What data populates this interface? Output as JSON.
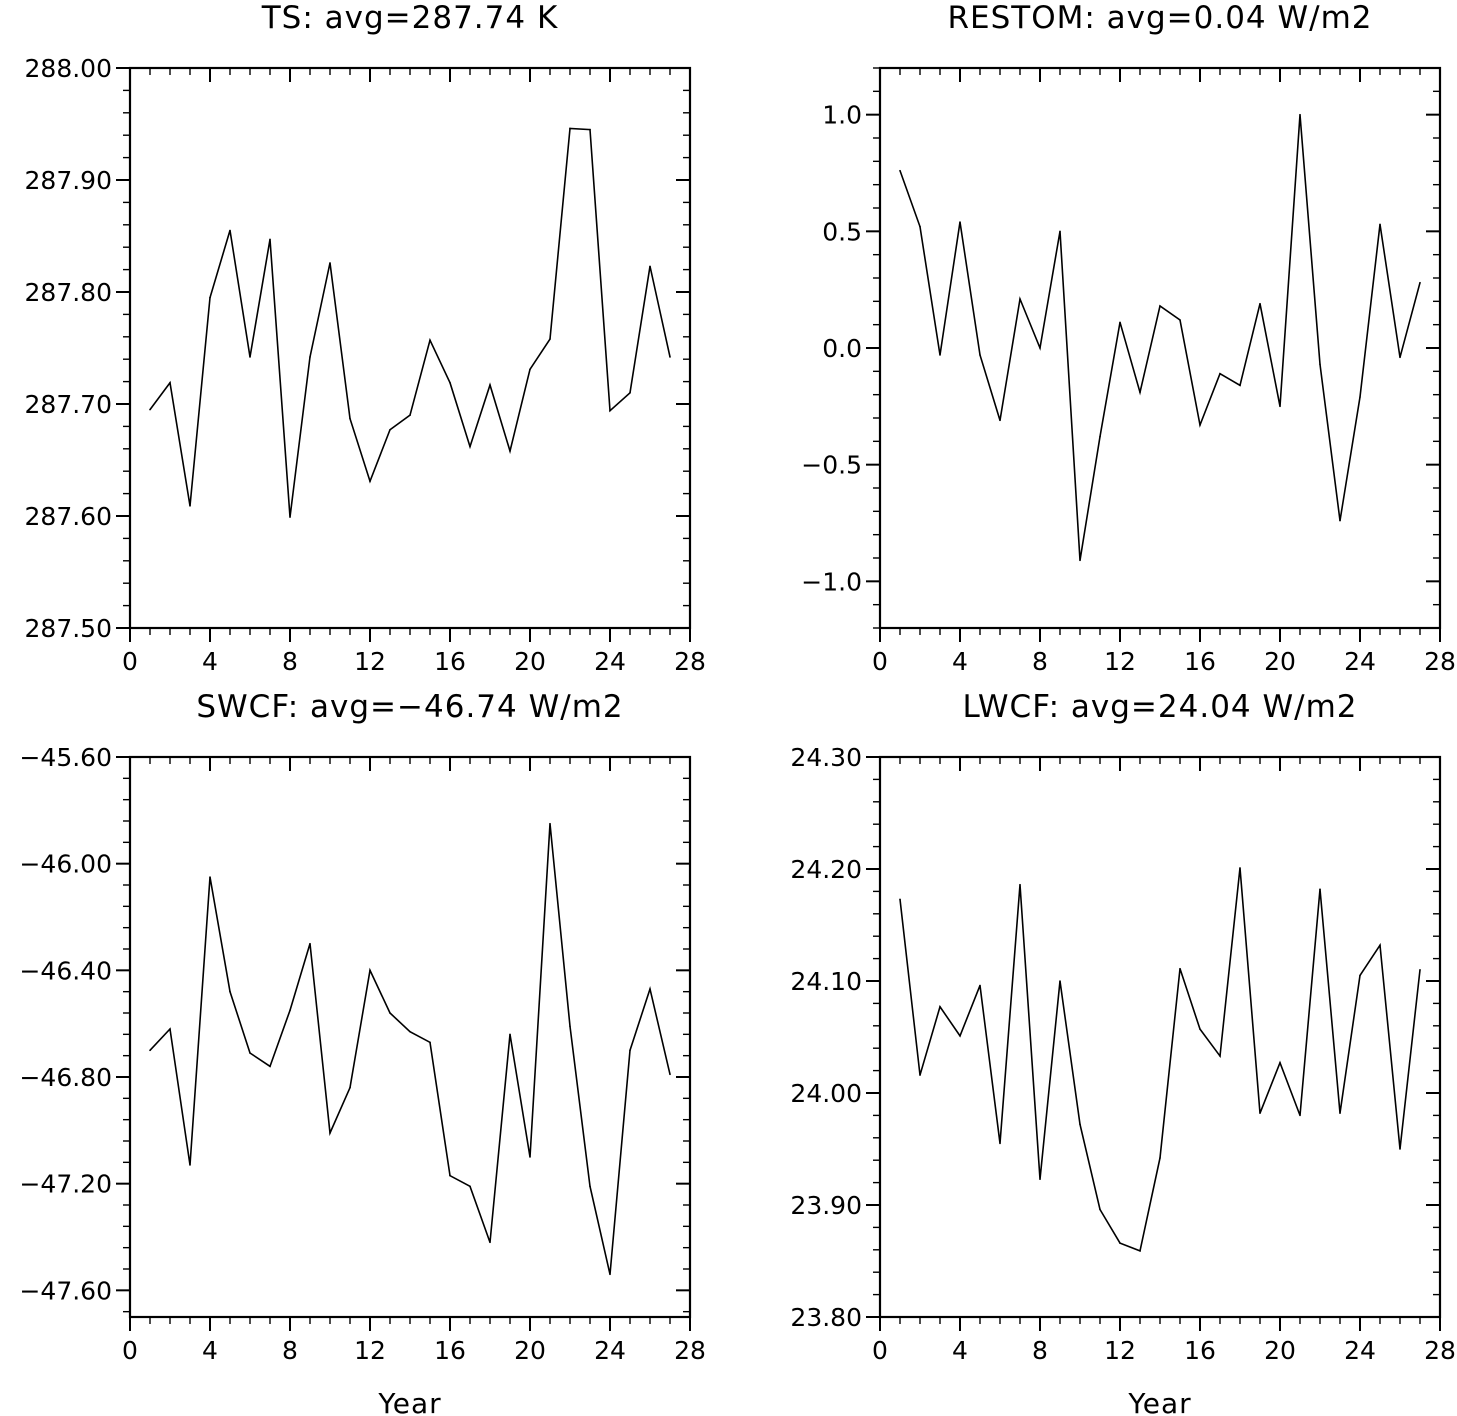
{
  "chart_data": [
    {
      "type": "line",
      "title": "TS: avg=287.74 K",
      "xlabel": "",
      "ylabel": "",
      "xlim": [
        0,
        28
      ],
      "ylim": [
        287.5,
        288.0
      ],
      "xticks": [
        0,
        4,
        8,
        12,
        16,
        20,
        24,
        28
      ],
      "xtick_labels": [
        "0",
        "4",
        "8",
        "12",
        "16",
        "20",
        "24",
        "28"
      ],
      "yticks": [
        287.5,
        287.6,
        287.7,
        287.8,
        287.9,
        288.0
      ],
      "ytick_labels": [
        "287.50",
        "287.60",
        "287.70",
        "287.80",
        "287.90",
        "288.00"
      ],
      "x": [
        1,
        2,
        3,
        4,
        5,
        6,
        7,
        8,
        9,
        10,
        11,
        12,
        13,
        14,
        15,
        16,
        17,
        18,
        19,
        20,
        21,
        22,
        23,
        24,
        25,
        26,
        27
      ],
      "series": [
        {
          "values": [
            287.695,
            287.719,
            287.609,
            287.795,
            287.855,
            287.742,
            287.847,
            287.599,
            287.742,
            287.826,
            287.687,
            287.631,
            287.677,
            287.69,
            287.757,
            287.719,
            287.662,
            287.717,
            287.658,
            287.731,
            287.758,
            287.946,
            287.945,
            287.694,
            287.71,
            287.823,
            287.742
          ]
        }
      ]
    },
    {
      "type": "line",
      "title": "RESTOM: avg=0.04 W/m2",
      "xlabel": "",
      "ylabel": "",
      "xlim": [
        0,
        28
      ],
      "ylim": [
        -1.2,
        1.2
      ],
      "xticks": [
        0,
        4,
        8,
        12,
        16,
        20,
        24,
        28
      ],
      "xtick_labels": [
        "0",
        "4",
        "8",
        "12",
        "16",
        "20",
        "24",
        "28"
      ],
      "yticks": [
        -1.0,
        -0.5,
        0.0,
        0.5,
        1.0
      ],
      "ytick_labels": [
        "−1.0",
        "−0.5",
        "0.0",
        "0.5",
        "1.0"
      ],
      "x": [
        1,
        2,
        3,
        4,
        5,
        6,
        7,
        8,
        9,
        10,
        11,
        12,
        13,
        14,
        15,
        16,
        17,
        18,
        19,
        20,
        21,
        22,
        23,
        24,
        25,
        26,
        27
      ],
      "series": [
        {
          "values": [
            0.76,
            0.52,
            -0.03,
            0.54,
            -0.03,
            -0.31,
            0.21,
            0.0,
            0.5,
            -0.91,
            -0.38,
            0.11,
            -0.19,
            0.18,
            0.12,
            -0.33,
            -0.11,
            -0.16,
            0.19,
            -0.25,
            1.0,
            -0.07,
            -0.74,
            -0.21,
            0.53,
            -0.04,
            0.28
          ]
        }
      ]
    },
    {
      "type": "line",
      "title": "SWCF: avg=−46.74 W/m2",
      "xlabel": "Year",
      "ylabel": "",
      "xlim": [
        0,
        28
      ],
      "ylim": [
        -47.7,
        -45.6
      ],
      "xticks": [
        0,
        4,
        8,
        12,
        16,
        20,
        24,
        28
      ],
      "xtick_labels": [
        "0",
        "4",
        "8",
        "12",
        "16",
        "20",
        "24",
        "28"
      ],
      "yticks": [
        -47.6,
        -47.2,
        -46.8,
        -46.4,
        -46.0,
        -45.6
      ],
      "ytick_labels": [
        "−47.60",
        "−47.20",
        "−46.80",
        "−46.40",
        "−46.00",
        "−45.60"
      ],
      "x": [
        1,
        2,
        3,
        4,
        5,
        6,
        7,
        8,
        9,
        10,
        11,
        12,
        13,
        14,
        15,
        16,
        17,
        18,
        19,
        20,
        21,
        22,
        23,
        24,
        25,
        26,
        27
      ],
      "series": [
        {
          "values": [
            -46.7,
            -46.62,
            -47.13,
            -46.05,
            -46.48,
            -46.71,
            -46.76,
            -46.55,
            -46.3,
            -47.01,
            -46.84,
            -46.4,
            -46.56,
            -46.63,
            -46.67,
            -47.17,
            -47.21,
            -47.42,
            -46.64,
            -47.1,
            -45.85,
            -46.61,
            -47.21,
            -47.54,
            -46.7,
            -46.47,
            -46.79
          ]
        }
      ]
    },
    {
      "type": "line",
      "title": "LWCF: avg=24.04 W/m2",
      "xlabel": "Year",
      "ylabel": "",
      "xlim": [
        0,
        28
      ],
      "ylim": [
        23.8,
        24.3
      ],
      "xticks": [
        0,
        4,
        8,
        12,
        16,
        20,
        24,
        28
      ],
      "xtick_labels": [
        "0",
        "4",
        "8",
        "12",
        "16",
        "20",
        "24",
        "28"
      ],
      "yticks": [
        23.8,
        23.9,
        24.0,
        24.1,
        24.2,
        24.3
      ],
      "ytick_labels": [
        "23.80",
        "23.90",
        "24.00",
        "24.10",
        "24.20",
        "24.30"
      ],
      "x": [
        1,
        2,
        3,
        4,
        5,
        6,
        7,
        8,
        9,
        10,
        11,
        12,
        13,
        14,
        15,
        16,
        17,
        18,
        19,
        20,
        21,
        22,
        23,
        24,
        25,
        26,
        27
      ],
      "series": [
        {
          "values": [
            24.173,
            24.016,
            24.077,
            24.051,
            24.096,
            23.955,
            24.186,
            23.923,
            24.1,
            23.972,
            23.896,
            23.866,
            23.859,
            23.942,
            24.111,
            24.057,
            24.033,
            24.201,
            23.982,
            24.027,
            23.98,
            24.182,
            23.982,
            24.105,
            24.132,
            23.95,
            24.11
          ]
        }
      ]
    }
  ]
}
